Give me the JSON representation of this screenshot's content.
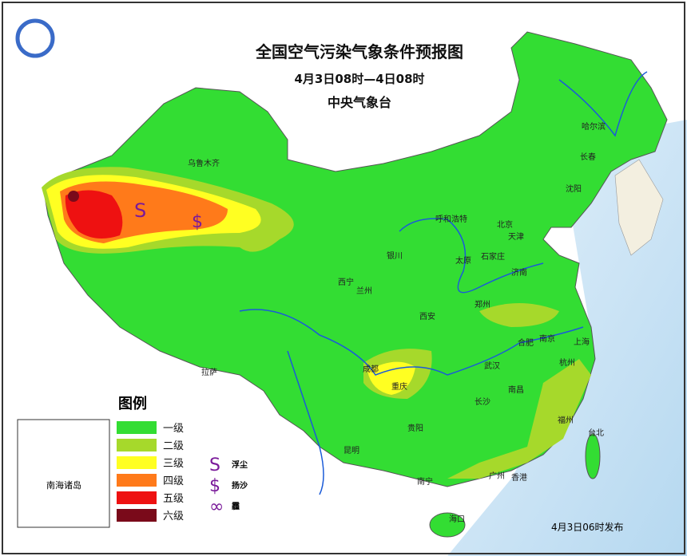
{
  "header": {
    "title": "全国空气污染气象条件预报图",
    "subtitle": "4月3日08时—4日08时",
    "issuer": "中央气象台"
  },
  "legend": {
    "title": "图例",
    "levels": [
      {
        "label": "一级",
        "color": "#33dd33"
      },
      {
        "label": "二级",
        "color": "#a6d92b"
      },
      {
        "label": "三级",
        "color": "#ffff22"
      },
      {
        "label": "四级",
        "color": "#ff7a1a"
      },
      {
        "label": "五级",
        "color": "#ee1111"
      },
      {
        "label": "六级",
        "color": "#7a0a1a"
      }
    ],
    "symbols": [
      {
        "glyph": "S",
        "label": "浮尘"
      },
      {
        "glyph": "$",
        "label": "扬沙"
      },
      {
        "glyph": "∞",
        "label": "霾"
      }
    ]
  },
  "map": {
    "cities": [
      "乌鲁木齐",
      "哈尔滨",
      "长春",
      "沈阳",
      "呼和浩特",
      "北京",
      "天津",
      "银川",
      "太原",
      "石家庄",
      "济南",
      "西宁",
      "兰州",
      "郑州",
      "西安",
      "合肥",
      "南京",
      "上海",
      "杭州",
      "成都",
      "重庆",
      "武汉",
      "拉萨",
      "贵阳",
      "长沙",
      "南昌",
      "福州",
      "台北",
      "昆明",
      "南宁",
      "广州",
      "香港",
      "海口"
    ],
    "symbols": [
      "S",
      "$"
    ]
  },
  "inset": {
    "label": "南海诸岛"
  },
  "footer": {
    "issued": "4月3日06时发布"
  }
}
